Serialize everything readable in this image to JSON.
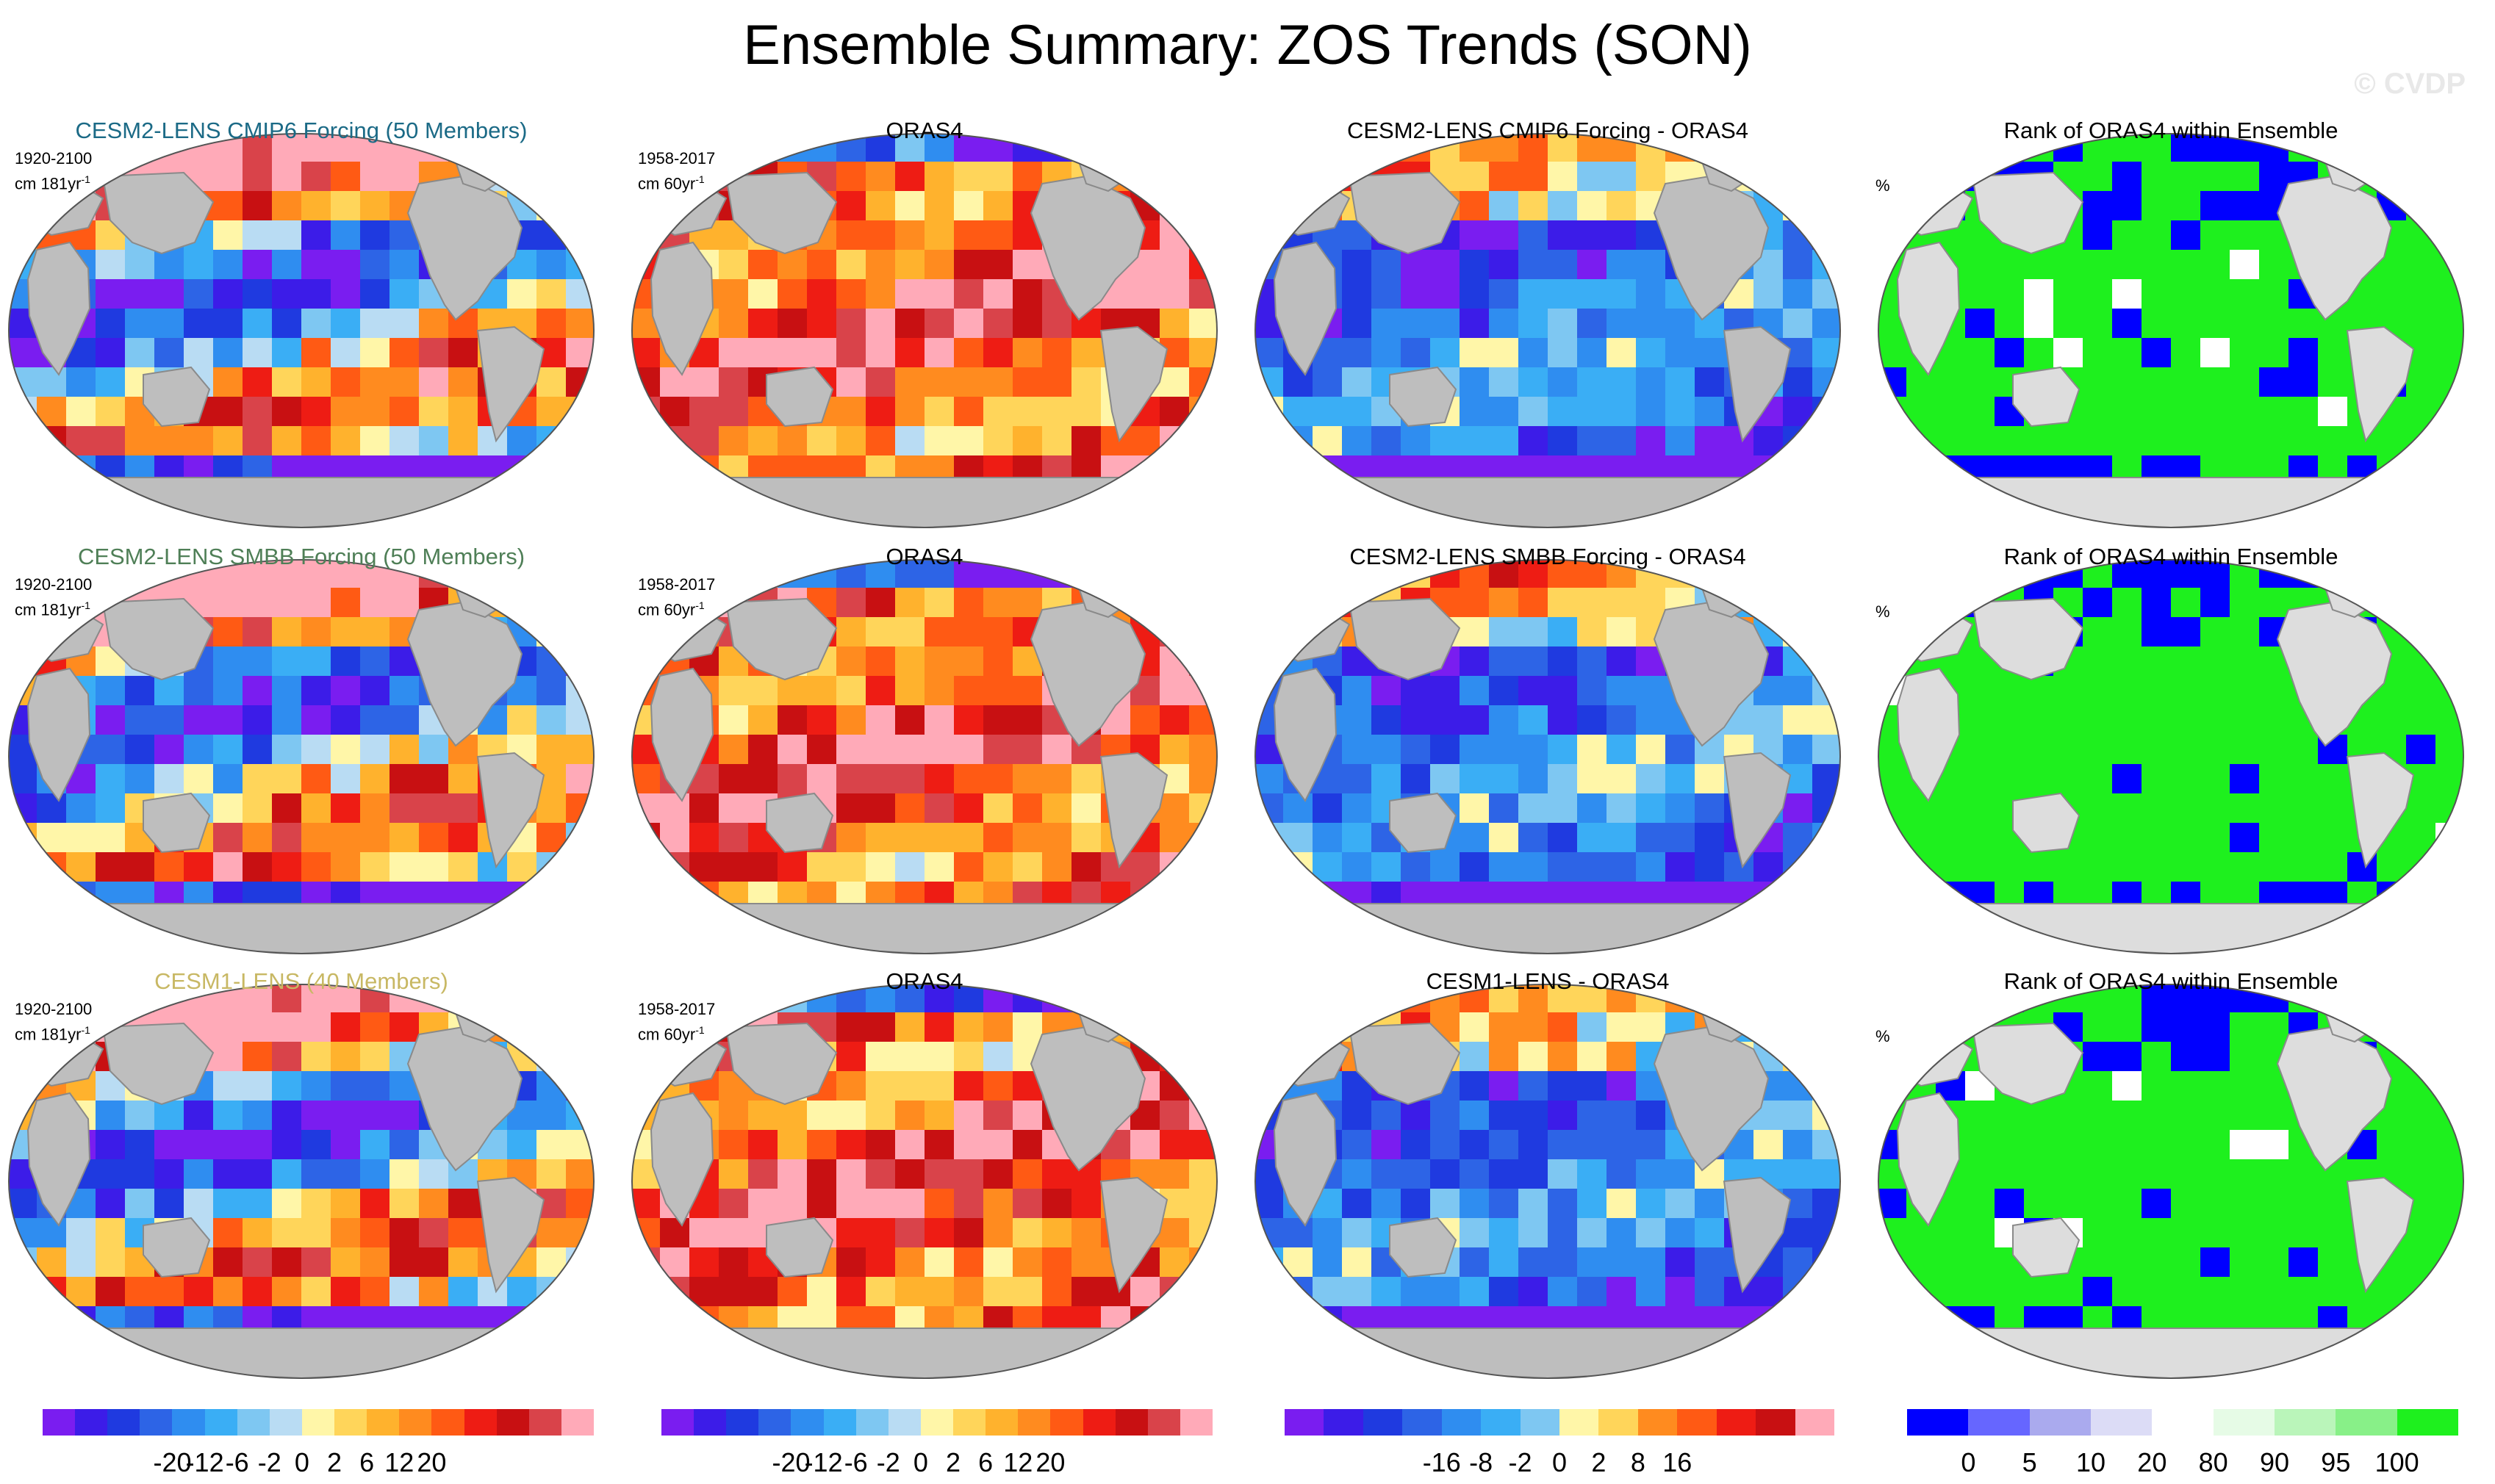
{
  "title": "Ensemble Summary: ZOS Trends (SON)",
  "watermark": "© CVDP",
  "rows": [
    {
      "ensemble": {
        "title": "CESM2-LENS CMIP6 Forcing (50 Members)",
        "title_color": "#1b6a86",
        "period": "1920-2100",
        "units_prefix": "cm 181yr",
        "units_exp": "-1"
      },
      "obs": {
        "title": "ORAS4",
        "period": "1958-2017",
        "units_prefix": "cm 60yr",
        "units_exp": "-1"
      },
      "diff": {
        "title": "CESM2-LENS CMIP6 Forcing - ORAS4"
      },
      "rank": {
        "title": "Rank of ORAS4 within Ensemble",
        "unit": "%"
      }
    },
    {
      "ensemble": {
        "title": "CESM2-LENS SMBB Forcing (50 Members)",
        "title_color": "#4f7f57",
        "period": "1920-2100",
        "units_prefix": "cm 181yr",
        "units_exp": "-1"
      },
      "obs": {
        "title": "ORAS4",
        "period": "1958-2017",
        "units_prefix": "cm 60yr",
        "units_exp": "-1"
      },
      "diff": {
        "title": "CESM2-LENS SMBB Forcing - ORAS4"
      },
      "rank": {
        "title": "Rank of ORAS4 within Ensemble",
        "unit": "%"
      }
    },
    {
      "ensemble": {
        "title": "CESM1-LENS (40 Members)",
        "title_color": "#c8b864",
        "period": "1920-2100",
        "units_prefix": "cm 181yr",
        "units_exp": "-1"
      },
      "obs": {
        "title": "ORAS4",
        "period": "1958-2017",
        "units_prefix": "cm 60yr",
        "units_exp": "-1"
      },
      "diff": {
        "title": "CESM1-LENS - ORAS4"
      },
      "rank": {
        "title": "Rank of ORAS4 within Ensemble",
        "unit": "%"
      }
    }
  ],
  "colorbars": [
    {
      "colors": [
        "#7a1df0",
        "#3c1ce8",
        "#1f3ae0",
        "#2d64e6",
        "#2f8df0",
        "#3aaef5",
        "#7ec7f2",
        "#b9dcf3",
        "#fff6a8",
        "#ffd55a",
        "#ffb22d",
        "#ff8b1f",
        "#ff5a14",
        "#ee1c14",
        "#c81012",
        "#d9434a",
        "#ffaab8"
      ],
      "ticks": [
        "-20",
        "-12",
        "-6",
        "-2",
        "0",
        "2",
        "6",
        "12",
        "20"
      ]
    },
    {
      "colors": [
        "#7a1df0",
        "#3c1ce8",
        "#1f3ae0",
        "#2d64e6",
        "#2f8df0",
        "#3aaef5",
        "#7ec7f2",
        "#b9dcf3",
        "#fff6a8",
        "#ffd55a",
        "#ffb22d",
        "#ff8b1f",
        "#ff5a14",
        "#ee1c14",
        "#c81012",
        "#d9434a",
        "#ffaab8"
      ],
      "ticks": [
        "-20",
        "-12",
        "-6",
        "-2",
        "0",
        "2",
        "6",
        "12",
        "20"
      ]
    },
    {
      "colors": [
        "#7a1df0",
        "#3c1ce8",
        "#1f3ae0",
        "#2d64e6",
        "#2f8df0",
        "#3aaef5",
        "#7ec7f2",
        "#fff6a8",
        "#ffd55a",
        "#ff8b1f",
        "#ff5a14",
        "#ee1c14",
        "#c81012",
        "#ffaab8"
      ],
      "ticks": [
        "-16",
        "-8",
        "-2",
        "0",
        "2",
        "8",
        "16"
      ]
    },
    {
      "colors": [
        "#0000ff",
        "#6666ff",
        "#aaaaee",
        "#dcdcf6",
        "#ffffff",
        "#e6fbe6",
        "#baf5ba",
        "#88f088",
        "#1ef01e"
      ],
      "ticks": [
        "0",
        "5",
        "10",
        "20",
        "80",
        "90",
        "95",
        "100"
      ]
    }
  ],
  "colors": {
    "land": "#bebebe",
    "rank_land": "#dddddd",
    "outline": "#555555"
  }
}
